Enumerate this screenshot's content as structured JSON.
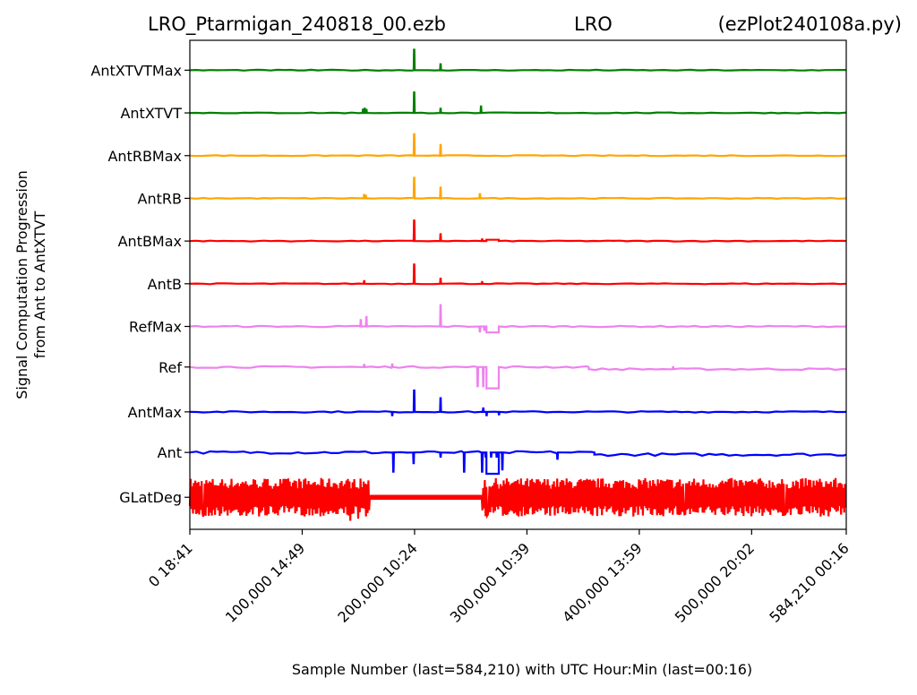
{
  "chart_data": {
    "type": "line",
    "title": {
      "file": "LRO_Ptarmigan_240818_00.ezb",
      "station": "LRO",
      "program": "(ezPlot240108a.py)"
    },
    "xlabel": "Sample Number (last=584,210) with UTC Hour:Min (last=00:16)",
    "ylabel_line1": "Signal Computation Progression",
    "ylabel_line2": "from Ant to AntXTVT",
    "xlim": [
      0,
      584210
    ],
    "x_ticks": [
      {
        "x": 0,
        "label": "0  18:41"
      },
      {
        "x": 100000,
        "label": "100,000  14:49"
      },
      {
        "x": 200000,
        "label": "200,000  10:24"
      },
      {
        "x": 300000,
        "label": "300,000  10:39"
      },
      {
        "x": 400000,
        "label": "400,000  13:59"
      },
      {
        "x": 500000,
        "label": "500,000  20:02"
      },
      {
        "x": 584210,
        "label": "584,210  00:16"
      }
    ],
    "series": [
      {
        "name": "GLatDeg",
        "color": "#ff0000",
        "style": "band",
        "level": 0,
        "amp": 0.45,
        "quiet_segments": [
          [
            160000,
            260000
          ]
        ],
        "spikes": [
          [
            12000,
            -0.45
          ],
          [
            143000,
            -0.55
          ],
          [
            150000,
            -0.5
          ],
          [
            265000,
            -0.4
          ],
          [
            395000,
            -0.45
          ],
          [
            440000,
            -0.4
          ],
          [
            530000,
            -0.4
          ]
        ]
      },
      {
        "name": "Ant",
        "color": "#0000ff",
        "style": "line",
        "level": 1.05,
        "noise": 0.03,
        "shifts": [
          [
            360000,
            1.0
          ]
        ],
        "spikes": [
          [
            181000,
            -0.45
          ],
          [
            199000,
            -0.25
          ],
          [
            223000,
            -0.1
          ],
          [
            244000,
            -0.45
          ],
          [
            260000,
            -0.45
          ],
          [
            263000,
            -0.1
          ],
          [
            268000,
            -0.1
          ],
          [
            273000,
            -0.1
          ],
          [
            278000,
            -0.4
          ],
          [
            327000,
            -0.15
          ]
        ],
        "boxes": [
          [
            264000,
            275000,
            -0.5
          ]
        ]
      },
      {
        "name": "AntMax",
        "color": "#0000ff",
        "style": "line",
        "level": 2.0,
        "noise": 0.015,
        "spikes": [
          [
            180000,
            -0.08
          ],
          [
            199500,
            0.5
          ],
          [
            223000,
            0.32
          ],
          [
            261000,
            0.08
          ],
          [
            264000,
            -0.08
          ],
          [
            275000,
            -0.06
          ]
        ]
      },
      {
        "name": "Ref",
        "color": "#ee82ee",
        "style": "line",
        "level": 3.05,
        "noise": 0.02,
        "shifts": [
          [
            355000,
            3.0
          ]
        ],
        "spikes": [
          [
            155000,
            0.05
          ],
          [
            180000,
            0.06
          ],
          [
            256000,
            -0.45
          ],
          [
            261000,
            -0.45
          ],
          [
            430000,
            0.05
          ]
        ],
        "boxes": [
          [
            264000,
            275000,
            -0.5
          ]
        ]
      },
      {
        "name": "RefMax",
        "color": "#ee82ee",
        "style": "line",
        "level": 4.0,
        "noise": 0.015,
        "spikes": [
          [
            152000,
            0.15
          ],
          [
            157000,
            0.22
          ],
          [
            223000,
            0.5
          ],
          [
            258000,
            -0.12
          ],
          [
            262000,
            -0.08
          ]
        ],
        "boxes": [
          [
            264000,
            275000,
            -0.14
          ]
        ]
      },
      {
        "name": "AntB",
        "color": "#ff0000",
        "style": "line",
        "level": 5.0,
        "noise": 0.01,
        "spikes": [
          [
            155000,
            0.06
          ],
          [
            199500,
            0.45
          ],
          [
            223000,
            0.12
          ],
          [
            260000,
            0.04
          ]
        ]
      },
      {
        "name": "AntBMax",
        "color": "#ff0000",
        "style": "line",
        "level": 6.0,
        "noise": 0.01,
        "spikes": [
          [
            199500,
            0.48
          ],
          [
            223000,
            0.16
          ],
          [
            260000,
            0.04
          ]
        ],
        "boxes": [
          [
            264000,
            275000,
            0.03
          ]
        ]
      },
      {
        "name": "AntRB",
        "color": "#ffa500",
        "style": "line",
        "level": 7.0,
        "noise": 0.01,
        "spikes": [
          [
            155000,
            0.08
          ],
          [
            156500,
            0.06
          ],
          [
            199500,
            0.48
          ],
          [
            223000,
            0.25
          ],
          [
            258000,
            0.1
          ]
        ]
      },
      {
        "name": "AntRBMax",
        "color": "#ffa500",
        "style": "line",
        "level": 8.0,
        "noise": 0.01,
        "spikes": [
          [
            199500,
            0.5
          ],
          [
            223000,
            0.25
          ]
        ]
      },
      {
        "name": "AntXTVT",
        "color": "#008000",
        "style": "line",
        "level": 9.0,
        "noise": 0.01,
        "spikes": [
          [
            154000,
            0.08
          ],
          [
            155500,
            0.1
          ],
          [
            157000,
            0.07
          ],
          [
            199500,
            0.48
          ],
          [
            223000,
            0.1
          ],
          [
            259000,
            0.15
          ]
        ]
      },
      {
        "name": "AntXTVTMax",
        "color": "#008000",
        "style": "line",
        "level": 10.0,
        "noise": 0.01,
        "spikes": [
          [
            199500,
            0.48
          ],
          [
            223000,
            0.14
          ]
        ]
      }
    ]
  }
}
